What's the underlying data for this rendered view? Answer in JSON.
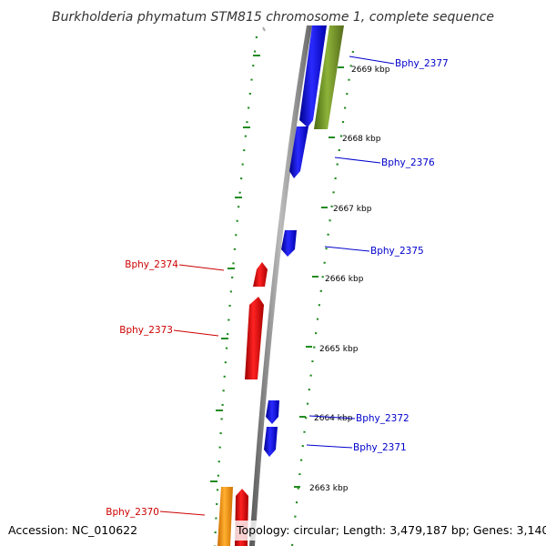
{
  "title": "Burkholderia phymatum STM815 chromosome 1, complete sequence",
  "accession": "Accession: NC_010622",
  "topology": "Topology: circular; Length: 3,479,187 bp; Genes: 3,140",
  "kbp_labels": [
    "2669 kbp",
    "2668 kbp",
    "2667 kbp",
    "2666 kbp",
    "2665 kbp",
    "2664 kbp",
    "2663 kbp"
  ],
  "genes": [
    {
      "name": "Bphy_2377",
      "strand": "forward",
      "color": "#0000cc"
    },
    {
      "name": "Bphy_2376",
      "strand": "forward",
      "color": "#0000cc"
    },
    {
      "name": "Bphy_2375",
      "strand": "forward",
      "color": "#0000cc"
    },
    {
      "name": "Bphy_2374",
      "strand": "reverse",
      "color": "#cc0000"
    },
    {
      "name": "Bphy_2373",
      "strand": "reverse",
      "color": "#cc0000"
    },
    {
      "name": "Bphy_2372",
      "strand": "forward",
      "color": "#0000cc"
    },
    {
      "name": "Bphy_2371",
      "strand": "forward",
      "color": "#0000cc"
    },
    {
      "name": "Bphy_2370",
      "strand": "reverse",
      "color": "#cc0000"
    }
  ],
  "colors": {
    "forward_gene": "#1010ee",
    "reverse_gene": "#ee1111",
    "other_feature": "#6b8e23",
    "orange_feature": "#ff9900",
    "backbone": "#888888",
    "ticks": "#228b22"
  }
}
